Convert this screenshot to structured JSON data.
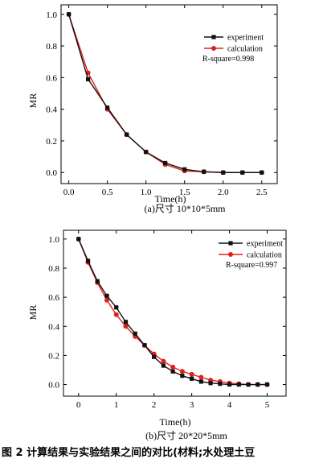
{
  "caption": "图 2  计算结果与实验结果之间的对比(材料;水处理土豆",
  "colors": {
    "experiment": "#111111",
    "calculation": "#e0201b"
  },
  "chart_data": [
    {
      "type": "line",
      "subtitle": "(a)尺寸 10*10*5mm",
      "xlabel": "Time(h)",
      "ylabel": "MR",
      "xlim": [
        -0.1,
        2.7
      ],
      "ylim": [
        -0.07,
        1.06
      ],
      "xticks": [
        0.0,
        0.5,
        1.0,
        1.5,
        2.0,
        2.5
      ],
      "xtick_labels": [
        "0.0",
        "0.5",
        "1.0",
        "1.5",
        "2.0",
        "2.5"
      ],
      "yticks": [
        0.0,
        0.2,
        0.4,
        0.6,
        0.8,
        1.0
      ],
      "ytick_labels": [
        "0.0",
        "0.2",
        "0.4",
        "0.6",
        "0.8",
        "1.0"
      ],
      "legend_placement": "top-right",
      "annotation": "R-square=0.998",
      "series": [
        {
          "name": "experiment",
          "marker": "square",
          "x": [
            0,
            0.25,
            0.5,
            0.75,
            1.0,
            1.25,
            1.5,
            1.75,
            2.0,
            2.25,
            2.5
          ],
          "y": [
            1.0,
            0.59,
            0.41,
            0.24,
            0.13,
            0.06,
            0.02,
            0.005,
            0.0,
            0.0,
            0.0
          ]
        },
        {
          "name": "calculation",
          "marker": "circle",
          "x": [
            0,
            0.25,
            0.5,
            0.75,
            1.0,
            1.25,
            1.5,
            1.75,
            2.0,
            2.25,
            2.5
          ],
          "y": [
            1.0,
            0.63,
            0.4,
            0.24,
            0.13,
            0.05,
            0.01,
            0.005,
            0.0,
            0.0,
            0.0
          ]
        }
      ]
    },
    {
      "type": "line",
      "subtitle": "(b)尺寸 20*20*5mm",
      "xlabel": "Time(h)",
      "ylabel": "MR",
      "xlim": [
        -0.4,
        5.5
      ],
      "ylim": [
        -0.08,
        1.06
      ],
      "xticks": [
        0,
        1,
        2,
        3,
        4,
        5
      ],
      "xtick_labels": [
        "0",
        "1",
        "2",
        "3",
        "4",
        "5"
      ],
      "yticks": [
        0.0,
        0.2,
        0.4,
        0.6,
        0.8,
        1.0
      ],
      "ytick_labels": [
        "0.0",
        "0.2",
        "0.4",
        "0.6",
        "0.8",
        "1.0"
      ],
      "legend_placement": "top-right",
      "annotation": "R-square=0.997",
      "series": [
        {
          "name": "experiment",
          "marker": "square",
          "x": [
            0,
            0.25,
            0.5,
            0.75,
            1.0,
            1.25,
            1.5,
            1.75,
            2.0,
            2.25,
            2.5,
            2.75,
            3.0,
            3.25,
            3.5,
            3.75,
            4.0,
            4.25,
            4.5,
            4.75,
            5.0
          ],
          "y": [
            1.0,
            0.85,
            0.71,
            0.61,
            0.53,
            0.43,
            0.35,
            0.27,
            0.19,
            0.13,
            0.09,
            0.06,
            0.04,
            0.02,
            0.01,
            0.005,
            0.0,
            0.0,
            0.0,
            0.0,
            0.0
          ]
        },
        {
          "name": "calculation",
          "marker": "circle",
          "x": [
            0,
            0.25,
            0.5,
            0.75,
            1.0,
            1.25,
            1.5,
            1.75,
            2.0,
            2.25,
            2.5,
            2.75,
            3.0,
            3.25,
            3.5,
            3.75,
            4.0,
            4.25,
            4.5,
            4.75,
            5.0
          ],
          "y": [
            1.0,
            0.84,
            0.7,
            0.58,
            0.48,
            0.4,
            0.33,
            0.27,
            0.21,
            0.16,
            0.12,
            0.09,
            0.07,
            0.05,
            0.03,
            0.02,
            0.01,
            0.005,
            0.0,
            0.0,
            0.0
          ]
        }
      ]
    }
  ]
}
